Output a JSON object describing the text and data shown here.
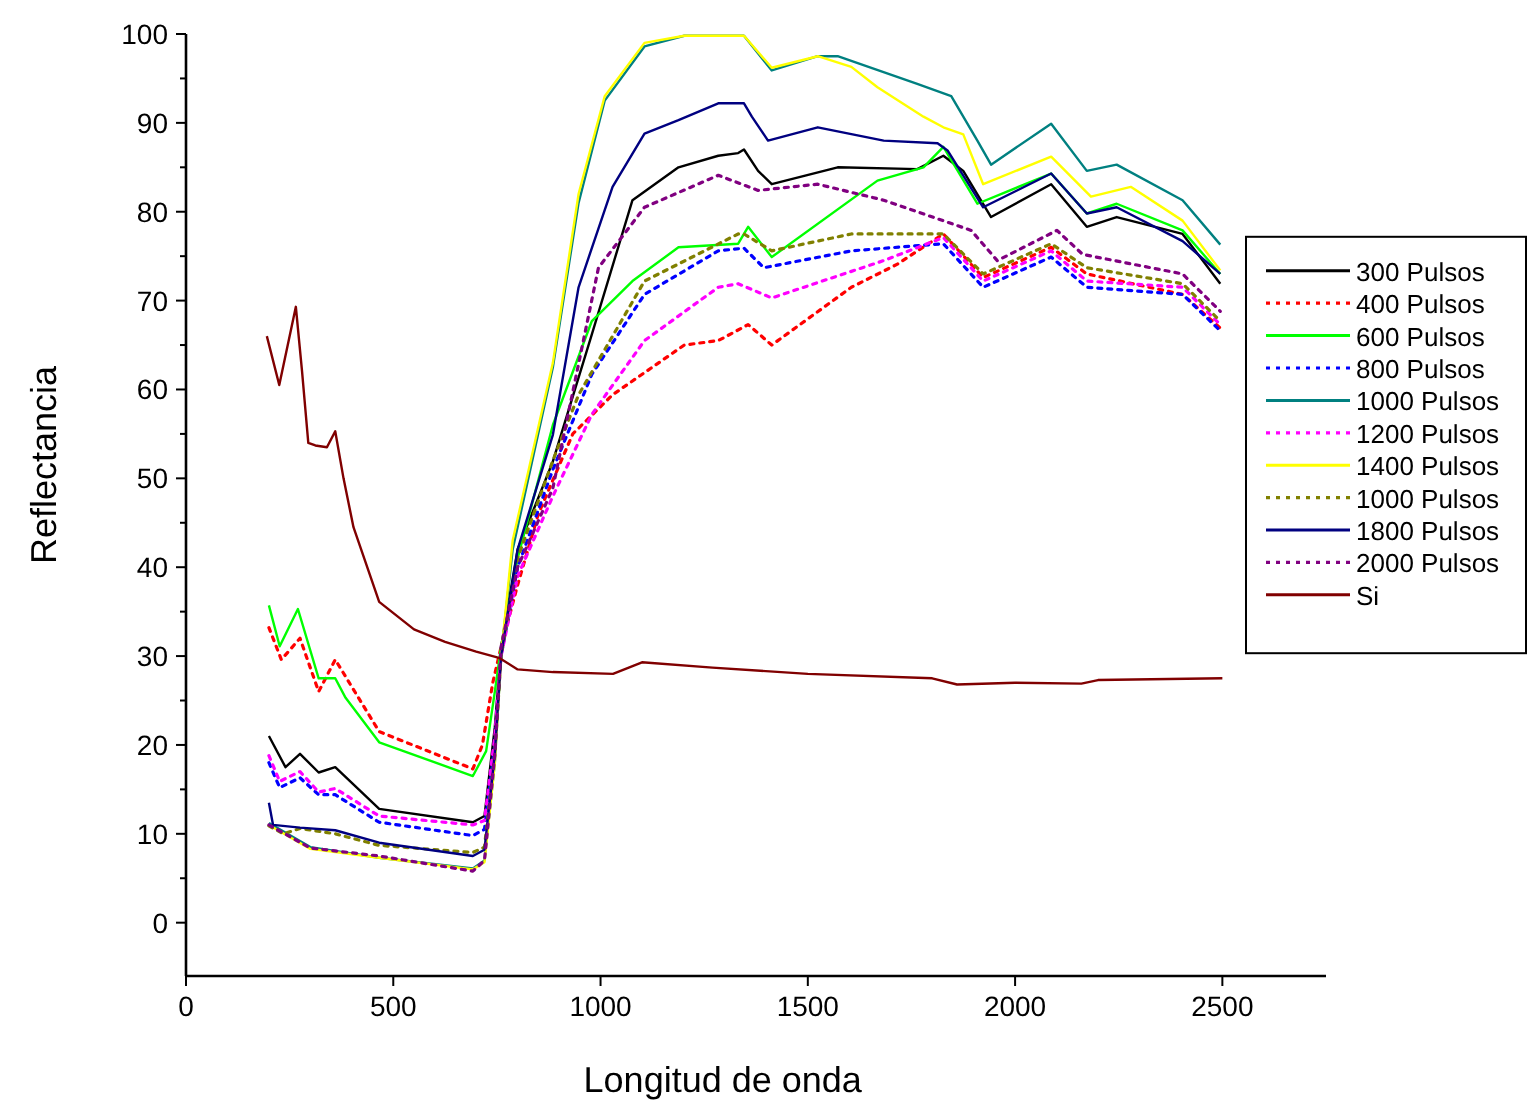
{
  "chart_data": {
    "type": "line",
    "xlabel": "Longitud de onda",
    "ylabel": "Reflectancia",
    "xlim": [
      0,
      2750
    ],
    "xticks": [
      0,
      500,
      1000,
      1500,
      2000,
      2500
    ],
    "ylim": [
      -6,
      100
    ],
    "yticks": [
      0,
      {
        "value": 5,
        "label": null
      },
      10,
      {
        "value": 15,
        "label": null
      },
      20,
      {
        "value": 25,
        "label": null
      },
      30,
      {
        "value": 35,
        "label": null
      },
      40,
      {
        "value": 45,
        "label": null
      },
      50,
      {
        "value": 55,
        "label": null
      },
      60,
      {
        "value": 65,
        "label": null
      },
      70,
      {
        "value": 75,
        "label": null
      },
      80,
      {
        "value": 85,
        "label": null
      },
      90,
      {
        "value": 95,
        "label": null
      },
      100
    ],
    "grid": false,
    "legend": "right",
    "marker": "none",
    "series": [
      {
        "name": "300 Pulsos",
        "color": "#000000",
        "line_style": "solid",
        "x": [
          200,
          240,
          275,
          320,
          360,
          466,
          692,
          720,
          745,
          760,
          800,
          885,
          979,
          1077,
          1188,
          1284,
          1332,
          1346,
          1380,
          1413,
          1572,
          1764,
          1827,
          1875,
          1942,
          2087,
          2173,
          2245,
          2404,
          2495
        ],
        "values": [
          21,
          17.5,
          19,
          16.9,
          17.5,
          12.8,
          11.3,
          12,
          22,
          31,
          42,
          51.9,
          66.2,
          81.3,
          85,
          86.3,
          86.6,
          87,
          84.6,
          83.1,
          85,
          84.8,
          86.3,
          84.6,
          79.4,
          83.1,
          78.3,
          79.4,
          77.5,
          71.9
        ]
      },
      {
        "name": "400 Pulsos",
        "color": "#ff0000",
        "line_style": "dotted",
        "x": [
          200,
          230,
          275,
          320,
          360,
          466,
          692,
          715,
          740,
          760,
          800,
          850,
          933,
          1029,
          1202,
          1284,
          1356,
          1413,
          1605,
          1716,
          1827,
          1923,
          2087,
          2173,
          2404,
          2495
        ],
        "values": [
          33.2,
          29.6,
          32,
          26,
          29.6,
          21.5,
          17.3,
          20,
          27,
          31,
          38,
          46,
          55,
          59.4,
          65,
          65.5,
          67.3,
          65,
          71.5,
          74.1,
          77.5,
          72.6,
          76,
          73,
          70.7,
          66.9
        ]
      },
      {
        "name": "600 Pulsos",
        "color": "#00ff00",
        "line_style": "solid",
        "x": [
          200,
          226,
          270,
          320,
          360,
          385,
          466,
          692,
          724,
          745,
          760,
          800,
          885,
          979,
          1077,
          1188,
          1332,
          1356,
          1413,
          1668,
          1779,
          1827,
          1909,
          2087,
          2173,
          2245,
          2404,
          2495
        ],
        "values": [
          35.7,
          31.1,
          35.3,
          27.5,
          27.5,
          25.3,
          20.3,
          16.5,
          19.3,
          26,
          31,
          41,
          56,
          67.7,
          72.2,
          76,
          76.4,
          78.3,
          74.9,
          83.5,
          85,
          87.3,
          80.9,
          84.3,
          79.8,
          80.9,
          77.9,
          73
        ]
      },
      {
        "name": "800 Pulsos",
        "color": "#0000ff",
        "line_style": "dotted",
        "x": [
          200,
          226,
          275,
          320,
          360,
          466,
          692,
          720,
          745,
          760,
          800,
          885,
          979,
          1106,
          1284,
          1346,
          1394,
          1605,
          1827,
          1923,
          2087,
          2173,
          2404,
          2495
        ],
        "values": [
          18,
          15.2,
          16.3,
          14.4,
          14.4,
          11.3,
          9.8,
          10.5,
          20,
          30,
          40,
          51,
          61.7,
          70.7,
          75.6,
          75.9,
          73.7,
          75.6,
          76.4,
          71.5,
          74.9,
          71.5,
          70.7,
          66.6
        ]
      },
      {
        "name": "1000 Pulsos",
        "color": "#008080",
        "line_style": "solid",
        "x": [
          200,
          300,
          466,
          692,
          720,
          745,
          760,
          788,
          885,
          947,
          1010,
          1106,
          1202,
          1346,
          1413,
          1524,
          1572,
          1764,
          1846,
          1909,
          1942,
          2087,
          2173,
          2245,
          2404,
          2495
        ],
        "values": [
          11.2,
          8.5,
          7.3,
          6.1,
          7,
          18,
          30,
          42,
          62.5,
          81,
          92.5,
          98.6,
          99.8,
          99.8,
          95.9,
          97.5,
          97.5,
          94.4,
          93,
          88,
          85.3,
          89.9,
          84.6,
          85.3,
          81.3,
          76.3
        ]
      },
      {
        "name": "1200 Pulsos",
        "color": "#ff00ff",
        "line_style": "dotted",
        "x": [
          200,
          226,
          275,
          320,
          360,
          466,
          692,
          720,
          745,
          760,
          800,
          885,
          979,
          1106,
          1284,
          1332,
          1413,
          1683,
          1827,
          1923,
          2087,
          2173,
          2404,
          2495
        ],
        "values": [
          18.8,
          15.9,
          17,
          14.7,
          15.1,
          12,
          11,
          11.5,
          21,
          30,
          39,
          48,
          57.2,
          65.5,
          71.5,
          71.9,
          70.3,
          74.5,
          77.1,
          72.2,
          75.6,
          72.2,
          71.5,
          67.3
        ]
      },
      {
        "name": "1400 Pulsos",
        "color": "#ffff00",
        "line_style": "solid",
        "x": [
          200,
          300,
          466,
          692,
          720,
          745,
          760,
          788,
          885,
          947,
          1010,
          1106,
          1202,
          1346,
          1413,
          1524,
          1605,
          1668,
          1779,
          1827,
          1875,
          1923,
          2087,
          2183,
          2279,
          2404,
          2495
        ],
        "values": [
          11,
          8.3,
          7.3,
          6,
          6.8,
          18,
          30,
          43,
          63,
          82,
          93,
          99,
          99.8,
          99.8,
          96.2,
          97.5,
          96.3,
          94,
          90.7,
          89.5,
          88.7,
          83.1,
          86.2,
          81.7,
          82.8,
          79,
          73.4
        ]
      },
      {
        "name": "1000 Pulsos",
        "color": "#808000",
        "line_style": "dotted",
        "x": [
          200,
          235,
          275,
          360,
          466,
          692,
          720,
          745,
          760,
          800,
          885,
          947,
          1106,
          1332,
          1346,
          1413,
          1605,
          1827,
          1923,
          2087,
          2173,
          2404,
          2495
        ],
        "values": [
          10.9,
          10,
          10.6,
          10,
          8.7,
          7.9,
          8.5,
          19,
          30,
          41,
          52,
          59.4,
          72.2,
          77.5,
          77.5,
          75.6,
          77.5,
          77.5,
          73,
          76.4,
          73.7,
          71.9,
          67.7
        ]
      },
      {
        "name": "1800 Pulsos",
        "color": "#000080",
        "line_style": "solid",
        "x": [
          200,
          210,
          275,
          360,
          466,
          692,
          720,
          745,
          760,
          800,
          885,
          947,
          1029,
          1106,
          1188,
          1284,
          1346,
          1365,
          1404,
          1524,
          1683,
          1813,
          1837,
          1923,
          2087,
          2173,
          2245,
          2404,
          2495
        ],
        "values": [
          13.5,
          11,
          10.7,
          10.4,
          9,
          7.5,
          8.2,
          19,
          30,
          42,
          54.9,
          71.5,
          82.8,
          88.8,
          90.3,
          92.2,
          92.2,
          90.7,
          88,
          89.5,
          88,
          87.7,
          86.9,
          80.5,
          84.3,
          79.8,
          80.5,
          76.7,
          73
        ]
      },
      {
        "name": "2000 Pulsos",
        "color": "#800080",
        "line_style": "dotted",
        "x": [
          200,
          300,
          466,
          692,
          720,
          745,
          760,
          800,
          885,
          995,
          1106,
          1284,
          1380,
          1524,
          1683,
          1894,
          1957,
          2101,
          2163,
          2404,
          2495
        ],
        "values": [
          11,
          8.4,
          7.5,
          5.8,
          7,
          19,
          31,
          40,
          48.9,
          73.7,
          80.5,
          84.1,
          82.4,
          83.1,
          81.3,
          77.9,
          74.5,
          77.9,
          75.2,
          73,
          68.8
        ]
      },
      {
        "name": "Si",
        "color": "#800000",
        "line_style": "solid",
        "x": [
          195,
          225,
          265,
          280,
          295,
          312,
          340,
          360,
          380,
          404,
          466,
          550,
          625,
          700,
          755,
          800,
          885,
          1030,
          1100,
          1270,
          1500,
          1800,
          1860,
          2000,
          2160,
          2200,
          2500
        ],
        "values": [
          66,
          60.5,
          69.3,
          62,
          54,
          53.7,
          53.5,
          55.3,
          50,
          44.5,
          36.1,
          33,
          31.6,
          30.5,
          29.8,
          28.5,
          28.2,
          28,
          29.3,
          28.7,
          28,
          27.5,
          26.8,
          27,
          26.9,
          27.3,
          27.5
        ]
      }
    ]
  }
}
